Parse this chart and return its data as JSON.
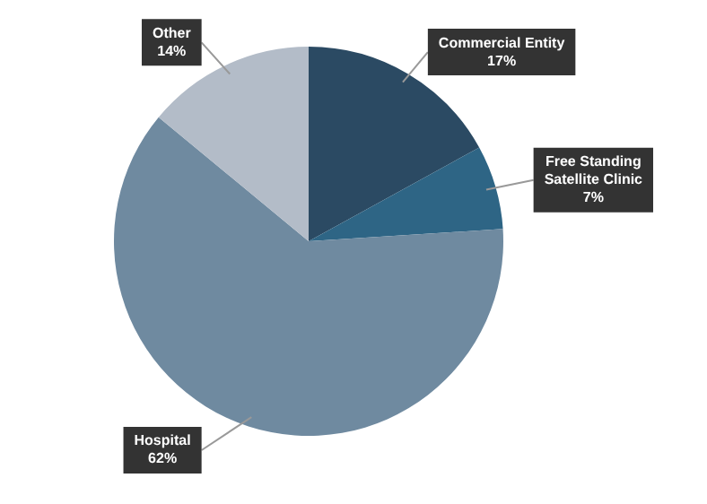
{
  "chart_data": {
    "type": "pie",
    "categories": [
      "Commercial Entity",
      "Free Standing Satellite Clinic",
      "Hospital",
      "Other"
    ],
    "values": [
      17,
      7,
      62,
      14
    ],
    "value_labels": [
      "17%",
      "7%",
      "62%",
      "14%"
    ],
    "colors": [
      "#2b4a63",
      "#2e6585",
      "#6f8aa0",
      "#b3bcc8"
    ],
    "legend": false
  }
}
